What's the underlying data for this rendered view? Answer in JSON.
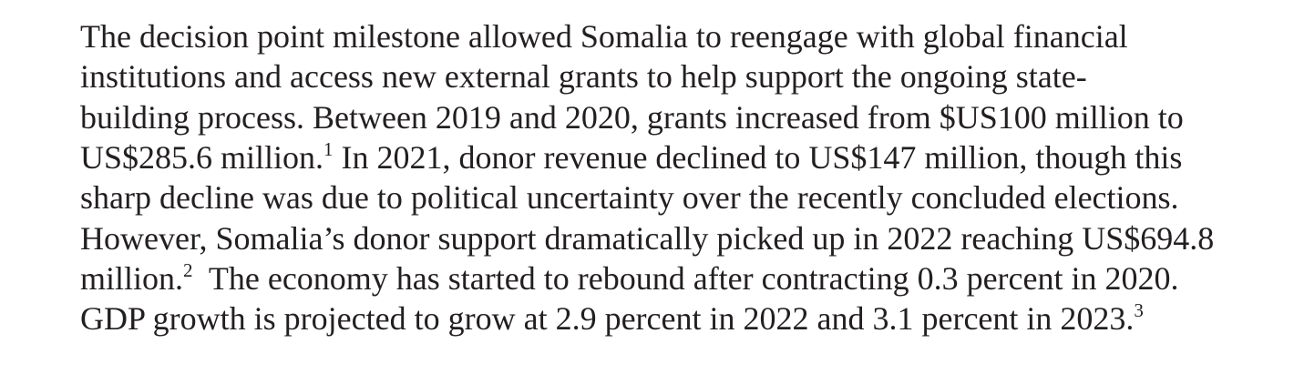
{
  "paragraph": {
    "lines": [
      [
        {
          "text": "The decision point milestone allowed Somalia to reengage with global financial"
        }
      ],
      [
        {
          "text": "institutions and access new external grants to help support the ongoing state-"
        }
      ],
      [
        {
          "text": "building process. Between 2019 and 2020, grants increased from $US100 million to"
        }
      ],
      [
        {
          "text": "US$285.6 million."
        },
        {
          "sup": "1"
        },
        {
          "text": " In 2021, donor revenue declined to US$147 million, though this"
        }
      ],
      [
        {
          "text": "sharp decline was due to political uncertainty over the recently concluded elections."
        }
      ],
      [
        {
          "text": "However, Somalia’s donor support dramatically picked up in 2022 reaching US$694.8"
        }
      ],
      [
        {
          "text": "million."
        },
        {
          "sup": "2"
        },
        {
          "text": "  The economy has started to rebound after contracting 0.3 percent in 2020."
        }
      ],
      [
        {
          "text": "GDP growth is projected to grow at 2.9 percent in 2022 and 3.1 percent in 2023."
        },
        {
          "sup": "3"
        }
      ]
    ]
  }
}
